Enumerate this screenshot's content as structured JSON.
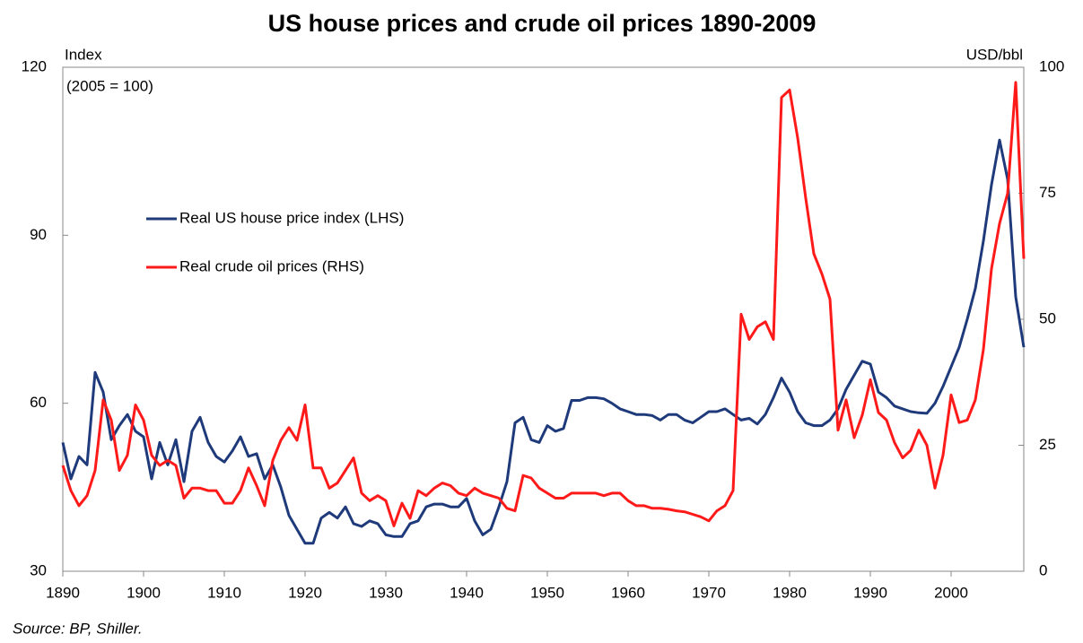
{
  "chart_data": {
    "type": "line",
    "title": "US house prices and crude oil prices 1890-2009",
    "y_label": "Index",
    "y_sublabel": "(2005 = 100)",
    "y2_label": "USD/bbl",
    "source": "Source: BP, Shiller.",
    "x": [
      1890,
      1891,
      1892,
      1893,
      1894,
      1895,
      1896,
      1897,
      1898,
      1899,
      1900,
      1901,
      1902,
      1903,
      1904,
      1905,
      1906,
      1907,
      1908,
      1909,
      1910,
      1911,
      1912,
      1913,
      1914,
      1915,
      1916,
      1917,
      1918,
      1919,
      1920,
      1921,
      1922,
      1923,
      1924,
      1925,
      1926,
      1927,
      1928,
      1929,
      1930,
      1931,
      1932,
      1933,
      1934,
      1935,
      1936,
      1937,
      1938,
      1939,
      1940,
      1941,
      1942,
      1943,
      1944,
      1945,
      1946,
      1947,
      1948,
      1949,
      1950,
      1951,
      1952,
      1953,
      1954,
      1955,
      1956,
      1957,
      1958,
      1959,
      1960,
      1961,
      1962,
      1963,
      1964,
      1965,
      1966,
      1967,
      1968,
      1969,
      1970,
      1971,
      1972,
      1973,
      1974,
      1975,
      1976,
      1977,
      1978,
      1979,
      1980,
      1981,
      1982,
      1983,
      1984,
      1985,
      1986,
      1987,
      1988,
      1989,
      1990,
      1991,
      1992,
      1993,
      1994,
      1995,
      1996,
      1997,
      1998,
      1999,
      2000,
      2001,
      2002,
      2003,
      2004,
      2005,
      2006,
      2007,
      2008,
      2009
    ],
    "series": [
      {
        "name": "Real US house price index (LHS)",
        "color": "#1f3a7a",
        "axis": "y",
        "values": [
          53,
          46.5,
          50.5,
          49,
          65.5,
          62,
          53.5,
          56,
          58,
          55,
          54,
          46.5,
          53,
          49,
          53.5,
          46,
          55,
          57.5,
          53,
          50.5,
          49.5,
          51.5,
          54,
          50.5,
          51,
          46.5,
          49,
          45,
          40,
          37.5,
          35,
          35,
          39.5,
          40.5,
          39.5,
          41.5,
          38.5,
          38,
          39,
          38.5,
          36.5,
          36.2,
          36.2,
          38.5,
          39,
          41.5,
          42,
          42,
          41.5,
          41.5,
          43,
          39,
          36.5,
          37.5,
          41.5,
          46,
          56.5,
          57.5,
          53.5,
          53,
          56,
          55,
          55.5,
          60.5,
          60.5,
          61,
          61,
          60.8,
          60,
          59,
          58.5,
          58,
          58,
          57.8,
          57,
          58,
          58,
          57,
          56.5,
          57.5,
          58.5,
          58.5,
          59,
          58,
          57,
          57.3,
          56.3,
          58,
          61,
          64.5,
          62,
          58.5,
          56.5,
          56,
          56,
          57,
          59,
          62.5,
          65,
          67.5,
          67,
          62,
          61,
          59.5,
          59,
          58.5,
          58.3,
          58.2,
          60,
          63,
          66.5,
          70,
          75,
          80.5,
          89,
          99,
          107,
          100,
          79,
          70
        ]
      },
      {
        "name": "Real crude oil prices (RHS)",
        "color": "#ff1a1a",
        "axis": "y2",
        "values": [
          21,
          16,
          13,
          15,
          20,
          34,
          30,
          20,
          23,
          33,
          30,
          23,
          21,
          22,
          21,
          14.5,
          16.5,
          16.5,
          16,
          16,
          13.5,
          13.5,
          16,
          20.5,
          17,
          13,
          22,
          26,
          28.5,
          26,
          33,
          20.5,
          20.5,
          16.5,
          17.5,
          20,
          22.5,
          15.5,
          14,
          15,
          14,
          9,
          13.5,
          10.5,
          16,
          15,
          16.5,
          17.5,
          17,
          15.5,
          15,
          16.5,
          15.5,
          15,
          14.5,
          12.5,
          12,
          19,
          18.5,
          16.5,
          15.5,
          14.5,
          14.5,
          15.5,
          15.5,
          15.5,
          15.5,
          15,
          15.5,
          15.5,
          14,
          13,
          13,
          12.5,
          12.5,
          12.3,
          12,
          11.8,
          11.3,
          10.8,
          10,
          12,
          13,
          16,
          51,
          46,
          48.5,
          49.5,
          46,
          94,
          95.5,
          86,
          74,
          63,
          59,
          54,
          28,
          34,
          26.5,
          31,
          38,
          31.5,
          30,
          25.5,
          22.5,
          24,
          28,
          25,
          16.5,
          23,
          35,
          29.5,
          30,
          34,
          44,
          60,
          69,
          75,
          97,
          62
        ]
      }
    ],
    "xlim": [
      1890,
      2009
    ],
    "xticks": [
      1890,
      1900,
      1910,
      1920,
      1930,
      1940,
      1950,
      1960,
      1970,
      1980,
      1990,
      2000
    ],
    "ylim": [
      30,
      120
    ],
    "yticks": [
      30,
      60,
      90,
      120
    ],
    "y2lim": [
      0,
      100
    ],
    "y2ticks": [
      0,
      25,
      50,
      75,
      100
    ]
  }
}
